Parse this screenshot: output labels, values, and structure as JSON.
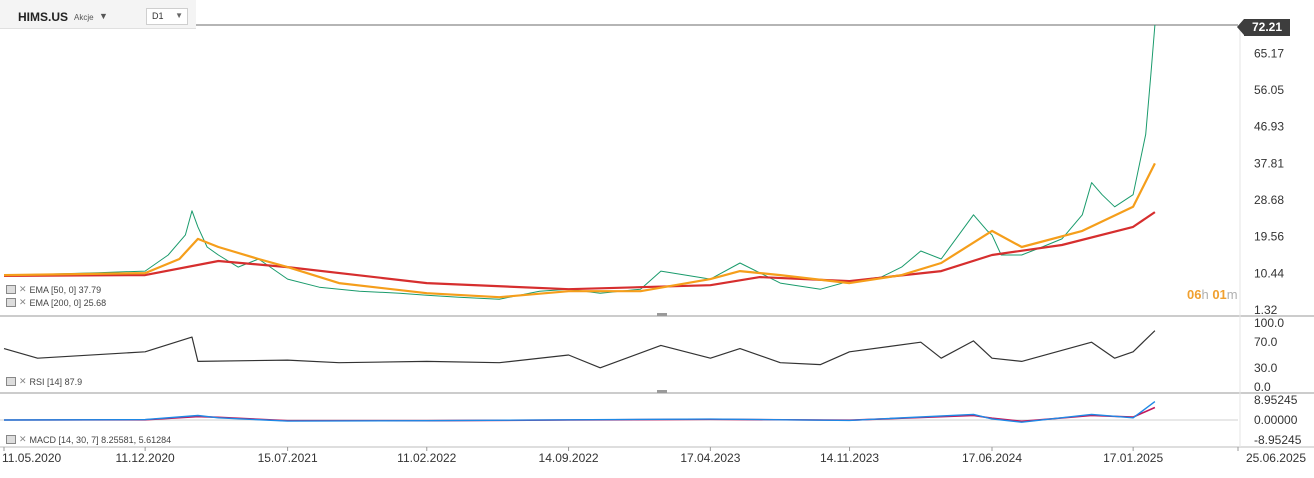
{
  "header": {
    "symbol": "HIMS.US",
    "instrument_type": "Akcje",
    "timeframe": "D1"
  },
  "last_price": "72.21",
  "countdown": {
    "hours": "06",
    "h_unit": "h",
    "minutes": "01",
    "m_unit": "m"
  },
  "colors": {
    "ema50": "#f59e1b",
    "ema200": "#d62e2e",
    "bull_candle": "#1a9b6c",
    "bear_candle": "#c0392b",
    "rsi_line": "#333333",
    "macd_line": "#1e88e5",
    "macd_signal": "#c2185b",
    "macd_hist": "#1565c0"
  },
  "indicators": {
    "ema50_label": "EMA [50, 0] 37.79",
    "ema200_label": "EMA [200, 0] 25.68",
    "rsi_label": "RSI [14] 87.9",
    "macd_label": "MACD [14, 30, 7] 8.25581, 5.61284"
  },
  "chart_data": [
    {
      "type": "line",
      "panel": "price",
      "title": "HIMS.US D1",
      "y_ticks": [
        "72.21",
        "65.17",
        "56.05",
        "46.93",
        "37.81",
        "28.68",
        "19.56",
        "10.44",
        "1.32"
      ],
      "ylim": [
        1.32,
        72.21
      ],
      "x_ticks": [
        "11.05.2020",
        "11.12.2020",
        "15.07.2021",
        "11.02.2022",
        "14.09.2022",
        "17.04.2023",
        "14.11.2023",
        "17.06.2024",
        "17.01.2025",
        "25.06.2025"
      ],
      "series": [
        {
          "name": "Price",
          "points": [
            [
              "11.05.2020",
              10.0
            ],
            [
              "01.08.2020",
              10.3
            ],
            [
              "01.10.2020",
              10.6
            ],
            [
              "11.12.2020",
              11.0
            ],
            [
              "15.01.2021",
              15.0
            ],
            [
              "10.02.2021",
              20.0
            ],
            [
              "20.02.2021",
              26.0
            ],
            [
              "01.03.2021",
              22.0
            ],
            [
              "15.03.2021",
              17.0
            ],
            [
              "01.04.2021",
              15.0
            ],
            [
              "01.05.2021",
              12.0
            ],
            [
              "01.06.2021",
              14.0
            ],
            [
              "15.07.2021",
              9.0
            ],
            [
              "01.09.2021",
              7.0
            ],
            [
              "01.11.2021",
              6.0
            ],
            [
              "01.01.2022",
              5.5
            ],
            [
              "11.02.2022",
              5.0
            ],
            [
              "01.04.2022",
              4.5
            ],
            [
              "01.06.2022",
              4.0
            ],
            [
              "01.08.2022",
              6.0
            ],
            [
              "14.09.2022",
              6.5
            ],
            [
              "01.11.2022",
              5.5
            ],
            [
              "01.01.2023",
              6.5
            ],
            [
              "01.02.2023",
              11.0
            ],
            [
              "17.04.2023",
              9.0
            ],
            [
              "01.06.2023",
              13.0
            ],
            [
              "01.08.2023",
              8.0
            ],
            [
              "01.10.2023",
              6.5
            ],
            [
              "14.11.2023",
              8.5
            ],
            [
              "01.01.2024",
              9.5
            ],
            [
              "01.02.2024",
              12.0
            ],
            [
              "01.03.2024",
              16.0
            ],
            [
              "01.04.2024",
              14.0
            ],
            [
              "20.05.2024",
              25.0
            ],
            [
              "10.06.2024",
              21.0
            ],
            [
              "17.06.2024",
              20.0
            ],
            [
              "01.07.2024",
              15.0
            ],
            [
              "01.08.2024",
              15.0
            ],
            [
              "01.09.2024",
              17.0
            ],
            [
              "01.10.2024",
              19.0
            ],
            [
              "01.11.2024",
              25.0
            ],
            [
              "15.11.2024",
              33.0
            ],
            [
              "01.12.2024",
              30.0
            ],
            [
              "20.12.2024",
              27.0
            ],
            [
              "17.01.2025",
              30.0
            ],
            [
              "05.02.2025",
              45.0
            ],
            [
              "13.02.2025",
              60.0
            ],
            [
              "19.02.2025",
              72.21
            ]
          ]
        },
        {
          "name": "EMA [50, 0]",
          "points": [
            [
              "11.05.2020",
              10.0
            ],
            [
              "11.12.2020",
              10.5
            ],
            [
              "01.02.2021",
              14.0
            ],
            [
              "01.03.2021",
              19.0
            ],
            [
              "01.04.2021",
              17.0
            ],
            [
              "01.06.2021",
              14.0
            ],
            [
              "15.07.2021",
              12.0
            ],
            [
              "01.10.2021",
              8.0
            ],
            [
              "11.02.2022",
              5.5
            ],
            [
              "01.06.2022",
              4.5
            ],
            [
              "14.09.2022",
              6.0
            ],
            [
              "01.01.2023",
              6.0
            ],
            [
              "17.04.2023",
              9.0
            ],
            [
              "01.06.2023",
              11.0
            ],
            [
              "01.08.2023",
              10.0
            ],
            [
              "14.11.2023",
              8.0
            ],
            [
              "01.02.2024",
              10.0
            ],
            [
              "01.04.2024",
              13.0
            ],
            [
              "17.06.2024",
              21.0
            ],
            [
              "01.08.2024",
              17.0
            ],
            [
              "01.11.2024",
              21.0
            ],
            [
              "17.01.2025",
              27.0
            ],
            [
              "19.02.2025",
              37.79
            ]
          ]
        },
        {
          "name": "EMA [200, 0]",
          "points": [
            [
              "11.05.2020",
              9.8
            ],
            [
              "11.12.2020",
              10.0
            ],
            [
              "01.04.2021",
              13.5
            ],
            [
              "15.07.2021",
              12.0
            ],
            [
              "11.02.2022",
              8.0
            ],
            [
              "14.09.2022",
              6.5
            ],
            [
              "17.04.2023",
              7.5
            ],
            [
              "01.07.2023",
              9.5
            ],
            [
              "14.11.2023",
              8.5
            ],
            [
              "01.04.2024",
              11.0
            ],
            [
              "17.06.2024",
              15.0
            ],
            [
              "01.10.2024",
              17.5
            ],
            [
              "17.01.2025",
              22.0
            ],
            [
              "19.02.2025",
              25.68
            ]
          ]
        }
      ]
    },
    {
      "type": "line",
      "panel": "rsi",
      "title": "RSI [14] 87.9",
      "y_ticks": [
        "100.0",
        "70.0",
        "30.0",
        "0.0"
      ],
      "ylim": [
        0,
        100
      ],
      "series": [
        {
          "name": "RSI [14]",
          "points": [
            [
              "11.05.2020",
              60
            ],
            [
              "01.07.2020",
              45
            ],
            [
              "11.12.2020",
              55
            ],
            [
              "20.02.2021",
              78
            ],
            [
              "01.03.2021",
              40
            ],
            [
              "15.07.2021",
              42
            ],
            [
              "01.10.2021",
              38
            ],
            [
              "11.02.2022",
              40
            ],
            [
              "01.06.2022",
              38
            ],
            [
              "14.09.2022",
              50
            ],
            [
              "01.11.2022",
              30
            ],
            [
              "01.02.2023",
              65
            ],
            [
              "17.04.2023",
              45
            ],
            [
              "01.06.2023",
              60
            ],
            [
              "01.08.2023",
              38
            ],
            [
              "01.10.2023",
              35
            ],
            [
              "14.11.2023",
              55
            ],
            [
              "01.03.2024",
              70
            ],
            [
              "01.04.2024",
              45
            ],
            [
              "20.05.2024",
              72
            ],
            [
              "17.06.2024",
              45
            ],
            [
              "01.08.2024",
              40
            ],
            [
              "15.11.2024",
              70
            ],
            [
              "20.12.2024",
              45
            ],
            [
              "17.01.2025",
              55
            ],
            [
              "19.02.2025",
              87.9
            ]
          ]
        }
      ]
    },
    {
      "type": "line",
      "panel": "macd",
      "title": "MACD [14, 30, 7] 8.25581, 5.61284",
      "y_ticks": [
        "8.95245",
        "0.00000",
        "-8.95245"
      ],
      "ylim": [
        -8.95245,
        8.95245
      ],
      "series": [
        {
          "name": "MACD",
          "points": [
            [
              "11.05.2020",
              0
            ],
            [
              "11.12.2020",
              0.2
            ],
            [
              "01.03.2021",
              2.0
            ],
            [
              "01.04.2021",
              1.0
            ],
            [
              "15.07.2021",
              -0.5
            ],
            [
              "11.02.2022",
              -0.3
            ],
            [
              "14.09.2022",
              0.1
            ],
            [
              "17.04.2023",
              0.4
            ],
            [
              "14.11.2023",
              -0.2
            ],
            [
              "20.05.2024",
              2.5
            ],
            [
              "17.06.2024",
              0.5
            ],
            [
              "01.08.2024",
              -1.0
            ],
            [
              "15.11.2024",
              2.5
            ],
            [
              "17.01.2025",
              1.0
            ],
            [
              "19.02.2025",
              8.25581
            ]
          ]
        },
        {
          "name": "Signal",
          "points": [
            [
              "11.05.2020",
              0
            ],
            [
              "11.12.2020",
              0.1
            ],
            [
              "01.03.2021",
              1.5
            ],
            [
              "01.04.2021",
              1.2
            ],
            [
              "15.07.2021",
              -0.3
            ],
            [
              "11.02.2022",
              -0.3
            ],
            [
              "14.09.2022",
              0.0
            ],
            [
              "17.04.2023",
              0.3
            ],
            [
              "14.11.2023",
              -0.1
            ],
            [
              "20.05.2024",
              2.0
            ],
            [
              "17.06.2024",
              0.8
            ],
            [
              "01.08.2024",
              -0.6
            ],
            [
              "15.11.2024",
              2.0
            ],
            [
              "17.01.2025",
              1.3
            ],
            [
              "19.02.2025",
              5.61284
            ]
          ]
        }
      ]
    }
  ]
}
